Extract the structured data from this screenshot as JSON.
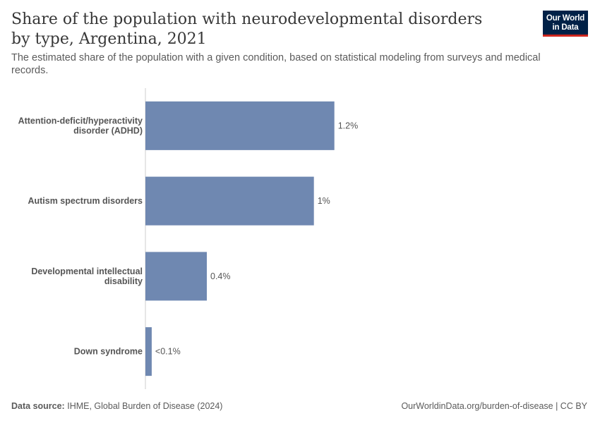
{
  "header": {
    "title": "Share of the population with neurodevelopmental disorders by type, Argentina, 2021",
    "subtitle": "The estimated share of the population with a given condition, based on statistical modeling from surveys and medical records.",
    "logo_line1": "Our World",
    "logo_line2": "in Data"
  },
  "colors": {
    "bar": "#6f88b1",
    "axis": "#cccccc",
    "logo_bg": "#002147",
    "logo_accent": "#ce261e"
  },
  "chart_data": {
    "type": "bar",
    "orientation": "horizontal",
    "title": "Share of the population with neurodevelopmental disorders by type, Argentina, 2021",
    "xlabel": "",
    "ylabel": "",
    "categories": [
      "Attention-deficit/hyperactivity disorder (ADHD)",
      "Autism spectrum disorders",
      "Developmental intellectual disability",
      "Down syndrome"
    ],
    "category_label_lines": [
      [
        "Attention-deficit/hyperactivity",
        "disorder (ADHD)"
      ],
      [
        "Autism spectrum disorders"
      ],
      [
        "Developmental intellectual",
        "disability"
      ],
      [
        "Down syndrome"
      ]
    ],
    "values": [
      1.2,
      1.07,
      0.39,
      0.04
    ],
    "value_labels": [
      "1.2%",
      "1%",
      "0.4%",
      "<0.1%"
    ],
    "xlim": [
      0,
      1.3
    ],
    "grid": false
  },
  "footer": {
    "source_label": "Data source:",
    "source_text": "IHME, Global Burden of Disease (2024)",
    "url_text": "OurWorldinData.org/burden-of-disease | CC BY"
  }
}
